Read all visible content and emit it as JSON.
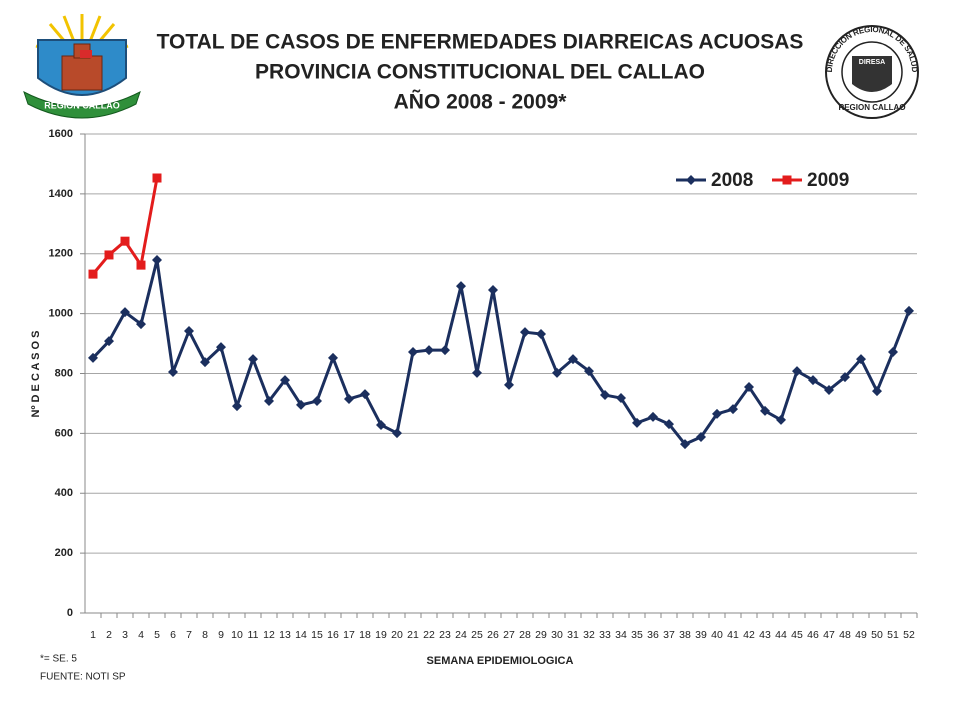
{
  "chart_data": {
    "type": "line",
    "title": [
      "TOTAL DE CASOS DE ENFERMEDADES  DIARREICAS  ACUOSAS",
      "PROVINCIA  CONSTITUCIONAL  DEL  CALLAO",
      "AÑO 2008 - 2009*"
    ],
    "y_label": "Nº  D E  C A S O S",
    "x_label": "SEMANA EPIDEMIOLOGICA",
    "footnote": "*= SE. 5",
    "source": "FUENTE: NOTI SP",
    "logos": {
      "left": "REGION CALLAO",
      "right_arc": "DIRECCION REGIONAL DE SALUD",
      "right_center": "DIRESA",
      "right_bottom": "REGION CALLAO"
    },
    "categories": [
      "1",
      "2",
      "3",
      "4",
      "5",
      "6",
      "7",
      "8",
      "9",
      "10",
      "11",
      "12",
      "13",
      "14",
      "15",
      "16",
      "17",
      "18",
      "19",
      "20",
      "21",
      "22",
      "23",
      "24",
      "25",
      "26",
      "27",
      "28",
      "29",
      "30",
      "31",
      "32",
      "33",
      "34",
      "35",
      "36",
      "37",
      "38",
      "39",
      "40",
      "41",
      "42",
      "43",
      "44",
      "45",
      "46",
      "47",
      "48",
      "49",
      "50",
      "51",
      "52"
    ],
    "series": [
      {
        "name": "2008",
        "color": "#1b2f5e",
        "marker": "diamond",
        "values": [
          852,
          908,
          1005,
          965,
          1179,
          805,
          942,
          838,
          888,
          691,
          848,
          708,
          778,
          695,
          708,
          852,
          715,
          731,
          628,
          601,
          872,
          878,
          878,
          1092,
          802,
          1079,
          762,
          938,
          932,
          802,
          848,
          808,
          728,
          718,
          635,
          655,
          631,
          564,
          588,
          665,
          681,
          755,
          675,
          645,
          808,
          778,
          745,
          788,
          848,
          741,
          872,
          1009
        ]
      },
      {
        "name": "2009",
        "color": "#e31c1c",
        "marker": "square",
        "values": [
          1132,
          1196,
          1242,
          1162,
          1453,
          null,
          null,
          null,
          null,
          null,
          null,
          null,
          null,
          null,
          null,
          null,
          null,
          null,
          null,
          null,
          null,
          null,
          null,
          null,
          null,
          null,
          null,
          null,
          null,
          null,
          null,
          null,
          null,
          null,
          null,
          null,
          null,
          null,
          null,
          null,
          null,
          null,
          null,
          null,
          null,
          null,
          null,
          null,
          null,
          null,
          null,
          null
        ]
      }
    ],
    "ylim": [
      0,
      1600
    ],
    "yticks": [
      0,
      200,
      400,
      600,
      800,
      1000,
      1200,
      1400,
      1600
    ],
    "grid": true,
    "legend": "top-right"
  }
}
